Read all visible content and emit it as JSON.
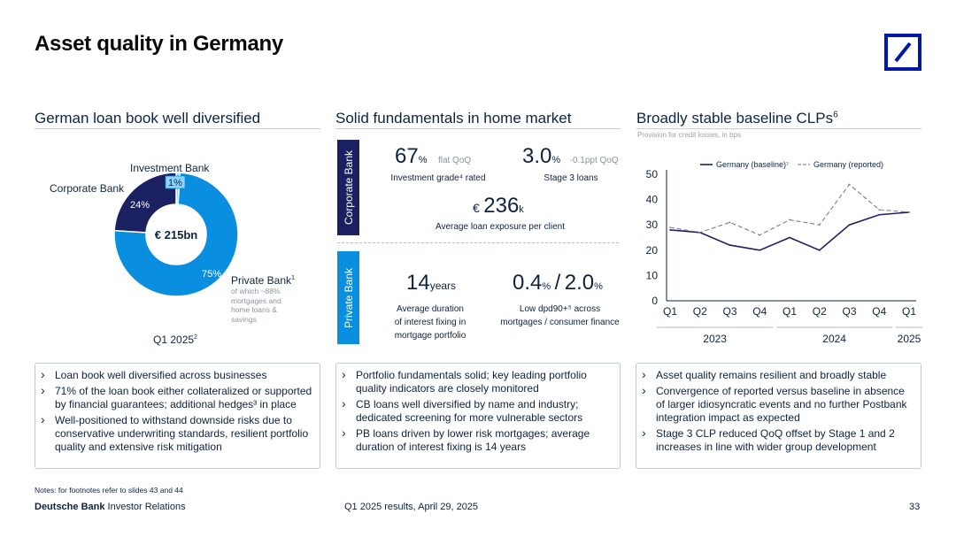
{
  "page": {
    "title": "Asset quality in Germany",
    "notes": "Notes: for footnotes refer to slides 43 and 44",
    "footer_brand_bold": "Deutsche Bank",
    "footer_brand_light": "Investor Relations",
    "footer_center": "Q1 2025 results, April 29, 2025",
    "page_number": "33"
  },
  "colors": {
    "navy": "#1a2060",
    "blue": "#0a8fe0",
    "light_blue": "#8fd3ff",
    "brand": "#0018a8"
  },
  "left": {
    "heading": "German loan book well diversified",
    "donut_center": "€ 215bn",
    "segments": [
      {
        "name": "Private Bank",
        "value": 75,
        "label": "75%",
        "color": "#0a8fe0"
      },
      {
        "name": "Corporate Bank",
        "value": 24,
        "label": "24%",
        "color": "#1a2060"
      },
      {
        "name": "Investment Bank",
        "value": 1,
        "label": "1%",
        "color": "#8fd3ff"
      }
    ],
    "label_investment": "Investment Bank",
    "label_corporate": "Corporate Bank",
    "label_private": "Private Bank",
    "label_private_sup": "1",
    "private_note": "of which ~88% mortgages and home loans & savings",
    "period": "Q1 2025",
    "period_sup": "2",
    "bullets": [
      "Loan book well diversified across businesses",
      "71% of the loan book either collateralized or supported by financial guarantees; additional hedges³ in place",
      "Well-positioned to withstand downside risks due to conservative underwriting standards, resilient portfolio quality and extensive risk mitigation"
    ]
  },
  "middle": {
    "heading": "Solid fundamentals in home market",
    "tab_corporate": "Corporate Bank",
    "tab_private": "Private Bank",
    "ig_value": "67",
    "ig_unit": "%",
    "ig_meta": "flat QoQ",
    "ig_caption": "Investment grade⁴ rated",
    "s3_value": "3.0",
    "s3_unit": "%",
    "s3_meta": "-0.1ppt QoQ",
    "s3_caption": "Stage 3 loans",
    "exp_currency": "€",
    "exp_value": "236",
    "exp_unit": "k",
    "exp_caption": "Average loan exposure per client",
    "dur_value": "14",
    "dur_unit": "years",
    "dur_caption_1": "Average duration",
    "dur_caption_2": "of interest fixing in",
    "dur_caption_3": "mortgage portfolio",
    "dpd_value_1": "0.4",
    "dpd_value_2": "2.0",
    "dpd_unit": "%",
    "dpd_sep": "/",
    "dpd_caption_1": "Low dpd90+⁵ across",
    "dpd_caption_2": "mortgages / consumer finance",
    "bullets": [
      "Portfolio fundamentals solid; key leading portfolio quality indicators are closely monitored",
      "CB loans well diversified by name and industry; dedicated screening for more vulnerable sectors",
      "PB loans driven by lower risk mortgages; average duration of interest fixing is 14 years"
    ]
  },
  "right": {
    "heading": "Broadly stable baseline CLPs",
    "heading_sup": "6",
    "subheading": "Provision for credit losses, in bps",
    "bullets": [
      "Asset quality remains resilient and broadly stable",
      "Convergence of reported versus baseline in absence of larger idiosyncratic events and no further Postbank integration impact as expected",
      "Stage 3 CLP reduced QoQ offset by Stage 1 and 2 increases in line with wider group development"
    ]
  },
  "chart_data": {
    "type": "line",
    "title": "Broadly stable baseline CLPs",
    "ylabel": "Provision for credit losses, in bps",
    "categories": [
      "Q1",
      "Q2",
      "Q3",
      "Q4",
      "Q1",
      "Q2",
      "Q3",
      "Q4",
      "Q1"
    ],
    "years": [
      {
        "label": "2023",
        "span": [
          0,
          3
        ]
      },
      {
        "label": "2024",
        "span": [
          4,
          7
        ]
      },
      {
        "label": "2025",
        "span": [
          8,
          8
        ]
      }
    ],
    "ylim": [
      0,
      50
    ],
    "yticks": [
      0,
      10,
      20,
      30,
      40,
      50
    ],
    "series": [
      {
        "name": "Germany (baseline)⁷",
        "style": "solid",
        "color": "#1a2060",
        "values": [
          28,
          27,
          22,
          20,
          25,
          20,
          30,
          34,
          35
        ]
      },
      {
        "name": "Germany (reported)",
        "style": "dashed",
        "color": "#6b7280",
        "values": [
          29,
          27,
          31,
          26,
          32,
          30,
          46,
          36,
          35
        ]
      }
    ],
    "legend": "top"
  }
}
